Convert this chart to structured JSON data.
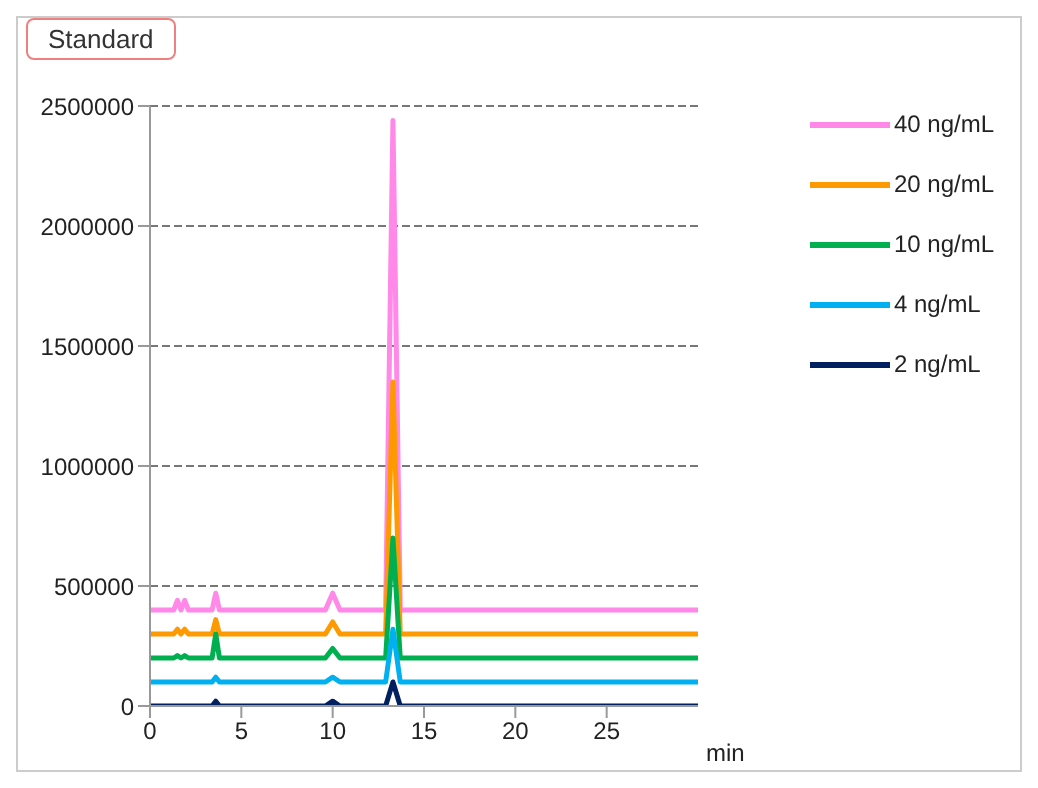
{
  "chart_data": {
    "type": "line",
    "title": "Standard",
    "xlabel": "min",
    "x": [
      0,
      1.3,
      1.5,
      1.7,
      1.9,
      2.1,
      2.3,
      3.4,
      3.6,
      3.8,
      9.6,
      10,
      10.4,
      12.9,
      13.3,
      13.7,
      30
    ],
    "series": [
      {
        "name": "40 ng/mL",
        "color": "#ff88e8",
        "values": [
          400000,
          400000,
          440000,
          400000,
          440000,
          400000,
          400000,
          400000,
          470000,
          400000,
          400000,
          470000,
          400000,
          400000,
          2440000,
          400000,
          400000
        ]
      },
      {
        "name": "20 ng/mL",
        "color": "#ff9900",
        "values": [
          300000,
          300000,
          320000,
          300000,
          320000,
          300000,
          300000,
          300000,
          360000,
          300000,
          300000,
          350000,
          300000,
          300000,
          1350000,
          300000,
          300000
        ]
      },
      {
        "name": "10 ng/mL",
        "color": "#00b050",
        "values": [
          200000,
          200000,
          210000,
          200000,
          210000,
          200000,
          200000,
          200000,
          300000,
          200000,
          200000,
          240000,
          200000,
          200000,
          700000,
          200000,
          200000
        ]
      },
      {
        "name": "4 ng/mL",
        "color": "#00b0f0",
        "values": [
          100000,
          100000,
          100000,
          100000,
          100000,
          100000,
          100000,
          100000,
          120000,
          100000,
          100000,
          120000,
          100000,
          100000,
          320000,
          100000,
          100000
        ]
      },
      {
        "name": "2 ng/mL",
        "color": "#002060",
        "values": [
          0,
          0,
          0,
          0,
          0,
          0,
          0,
          0,
          20000,
          0,
          0,
          20000,
          0,
          0,
          100000,
          0,
          0
        ]
      }
    ],
    "xlim": [
      0,
      30
    ],
    "xticks": [
      0,
      5,
      10,
      15,
      20,
      25
    ],
    "ylim": [
      0,
      2500000
    ],
    "yticks": [
      0,
      500000,
      1000000,
      1500000,
      2000000,
      2500000
    ],
    "grid": "y",
    "legend": "top right",
    "marker": "none",
    "line_style": "solid"
  }
}
